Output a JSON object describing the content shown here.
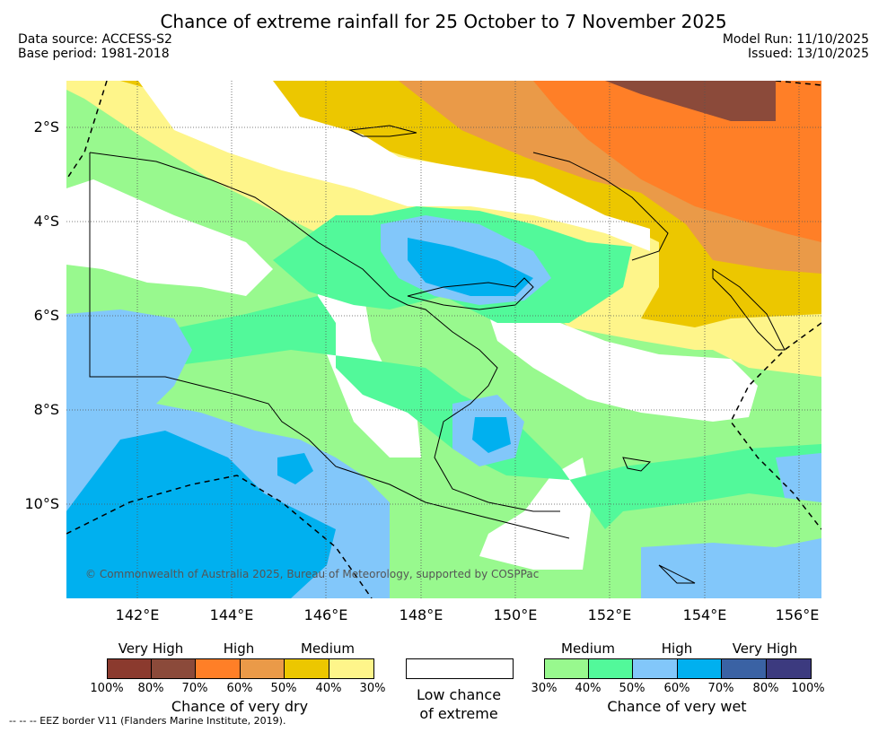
{
  "header": {
    "title": "Chance of extreme rainfall for 25 October to 7 November 2025",
    "data_source": "Data source: ACCESS-S2",
    "base_period": "Base period: 1981-2018",
    "model_run": "Model Run: 11/10/2025",
    "issued": "Issued: 13/10/2025"
  },
  "map": {
    "lat_labels": [
      "2°S",
      "4°S",
      "6°S",
      "8°S",
      "10°S"
    ],
    "lon_labels": [
      "142°E",
      "144°E",
      "146°E",
      "148°E",
      "150°E",
      "152°E",
      "154°E",
      "156°E"
    ],
    "copyright": "© Commonwealth of Australia 2025, Bureau of Meteorology, supported by COSPPac",
    "eez_note": "--  --  -- EEZ border V11 (Flanders Marine Institute, 2019)."
  },
  "legend": {
    "dry": {
      "levels": [
        "Very High",
        "High",
        "Medium"
      ],
      "percents": [
        "100%",
        "80%",
        "70%",
        "60%",
        "50%",
        "40%",
        "30%"
      ],
      "colors": [
        "#8b3a2e",
        "#8b4a3a",
        "#ff7f27",
        "#ea9a48",
        "#ecc700",
        "#fef58a"
      ],
      "caption": "Chance of very dry"
    },
    "neutral": {
      "caption_line1": "Low chance",
      "caption_line2": "of extreme"
    },
    "wet": {
      "levels": [
        "Medium",
        "High",
        "Very High"
      ],
      "percents": [
        "30%",
        "40%",
        "50%",
        "60%",
        "70%",
        "80%",
        "100%"
      ],
      "colors": [
        "#98f98e",
        "#52f99a",
        "#82c7fa",
        "#00b0ef",
        "#3a62a4",
        "#3c3a7f"
      ],
      "caption": "Chance of very wet"
    }
  }
}
